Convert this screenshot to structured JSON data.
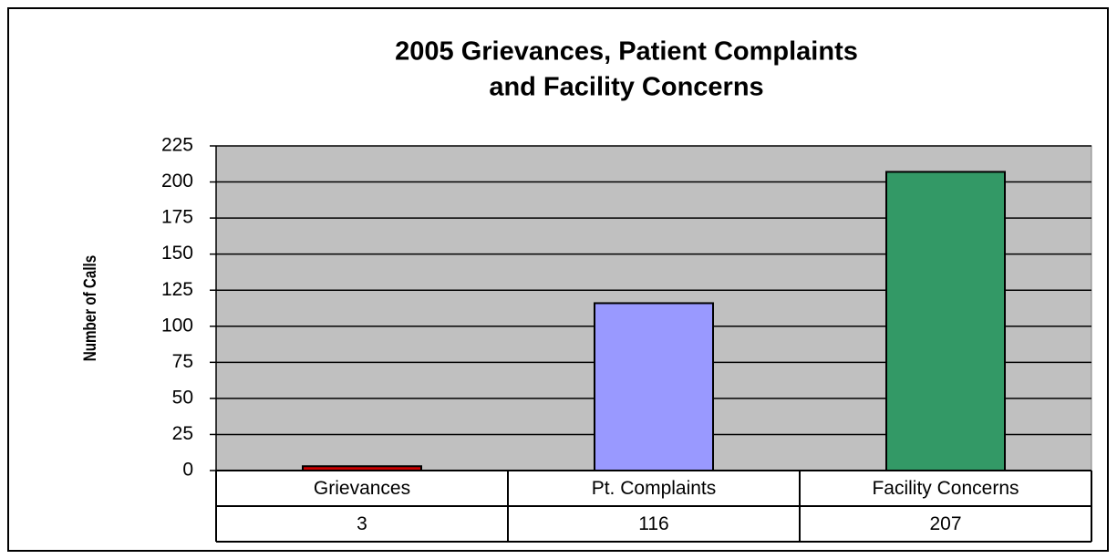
{
  "chart_data": {
    "type": "bar",
    "title": [
      "2005 Grievances, Patient Complaints",
      "and Facility Concerns"
    ],
    "y_label": "Number of Calls",
    "categories": [
      "Grievances",
      "Pt. Complaints",
      "Facility Concerns"
    ],
    "values": [
      3,
      116,
      207
    ],
    "colors": [
      "#cc0000",
      "#9999ff",
      "#339966"
    ],
    "ylim": [
      0,
      225
    ],
    "yticks": [
      0,
      25,
      50,
      75,
      100,
      125,
      150,
      175,
      200,
      225
    ],
    "grid": true,
    "plot_background": "#c0c0c0"
  }
}
